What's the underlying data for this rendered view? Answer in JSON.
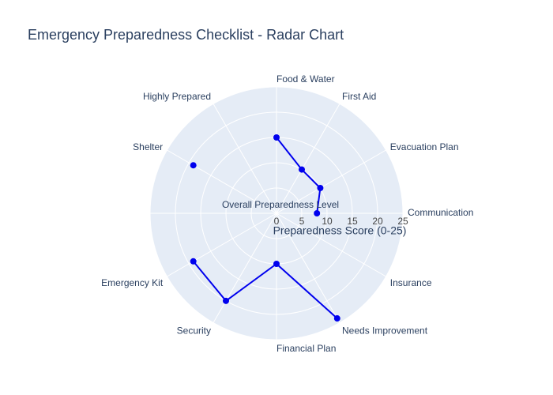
{
  "chart_data": {
    "type": "radar",
    "title": "Emergency Preparedness Checklist - Radar Chart",
    "radial_axis_title": "Preparedness Score (0-25)",
    "radial_range": [
      0,
      25
    ],
    "radial_ticks": [
      "0",
      "5",
      "10",
      "15",
      "20",
      "25"
    ],
    "categories": [
      "Communication",
      "Evacuation Plan",
      "First Aid",
      "Food & Water",
      "Highly Prepared",
      "Shelter",
      "Overall Preparedness Level",
      "Emergency Kit",
      "Security",
      "Financial Plan",
      "Needs Improvement",
      "Insurance"
    ],
    "series": [
      {
        "values": [
          8,
          10,
          10,
          15,
          null,
          19,
          null,
          19,
          20,
          10,
          24,
          null
        ],
        "color": "#0000ee"
      }
    ],
    "grid": true,
    "background_color": "#e5ecf6"
  }
}
